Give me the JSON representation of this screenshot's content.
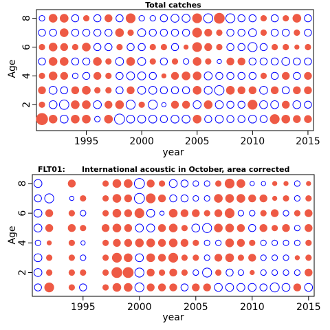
{
  "chart_data": [
    {
      "type": "bubble",
      "title": "Total catches",
      "title_prefix": "",
      "xlabel": "year",
      "ylabel": "Age",
      "xlim": [
        1990.5,
        2015.5
      ],
      "ylim": [
        0.2,
        8.6
      ],
      "xticks": [
        1995,
        2000,
        2005,
        2010,
        2015
      ],
      "yticks": [
        2,
        4,
        6,
        8
      ],
      "x": [
        1991,
        1992,
        1993,
        1994,
        1995,
        1996,
        1997,
        1998,
        1999,
        2000,
        2001,
        2002,
        2003,
        2004,
        2005,
        2006,
        2007,
        2008,
        2009,
        2010,
        2011,
        2012,
        2013,
        2014,
        2015
      ],
      "ages": [
        1,
        2,
        3,
        4,
        5,
        6,
        7,
        8
      ],
      "legend": "positive residuals filled (#EE5A45), negative residuals open circles (#0000FF)",
      "residuals": [
        [
          2.0,
          1.0,
          -1.0,
          1.0,
          1.0,
          -0.5,
          1.0,
          -1.6,
          -1.0,
          -1.0,
          -1.0,
          -0.8,
          -1.0,
          -1.0,
          1.0,
          -0.8,
          -1.0,
          -0.8,
          -0.8,
          -1.0,
          -0.8,
          1.3,
          1.0,
          0.8,
          0.8
        ],
        [
          0.5,
          -1.0,
          -1.4,
          1.0,
          1.0,
          -1.0,
          0.8,
          1.0,
          -1.3,
          0.5,
          -1.3,
          -0.3,
          0.8,
          0.8,
          -1.0,
          1.0,
          -1.0,
          -0.8,
          -0.8,
          1.3,
          -1.0,
          -1.0,
          0.8,
          -1.0,
          -0.8
        ],
        [
          0.8,
          -1.0,
          -0.8,
          0.8,
          1.0,
          0.5,
          0.5,
          -0.8,
          0.8,
          -1.0,
          -1.0,
          -0.8,
          -0.8,
          -0.8,
          1.0,
          -1.0,
          -1.4,
          1.0,
          0.8,
          0.8,
          -1.0,
          0.8,
          -0.8,
          0.8,
          0.8
        ],
        [
          0.5,
          1.0,
          0.8,
          -0.5,
          -0.8,
          0.8,
          0.5,
          -0.8,
          -1.0,
          -1.0,
          -0.8,
          0.3,
          0.8,
          1.0,
          1.0,
          -1.0,
          -0.8,
          -0.8,
          -0.8,
          -0.8,
          0.5,
          -0.8,
          0.8,
          -0.8,
          0.8
        ],
        [
          -0.8,
          1.0,
          1.0,
          -0.8,
          -0.8,
          1.0,
          0.5,
          -1.0,
          1.0,
          -1.0,
          0.5,
          -0.8,
          0.5,
          -0.5,
          1.0,
          0.5,
          -0.3,
          0.8,
          0.8,
          -0.8,
          -0.8,
          -0.8,
          -1.0,
          -0.8,
          -0.8
        ],
        [
          0.5,
          1.0,
          0.8,
          0.5,
          1.0,
          -0.8,
          -0.8,
          0.5,
          -0.8,
          -0.8,
          0.5,
          0.5,
          -0.8,
          0.3,
          1.3,
          0.8,
          0.5,
          -0.8,
          -0.8,
          -1.3,
          -0.8,
          0.5,
          0.5,
          0.3,
          0.5
        ],
        [
          -0.8,
          -0.8,
          1.0,
          -0.8,
          -0.8,
          -0.8,
          -0.8,
          1.0,
          0.5,
          -1.0,
          -0.8,
          -0.8,
          -0.8,
          -0.8,
          1.3,
          0.8,
          0.5,
          -0.8,
          -0.8,
          -1.0,
          0.5,
          -0.8,
          -0.8,
          0.5,
          -0.8
        ],
        [
          -0.5,
          1.0,
          1.0,
          -0.8,
          0.5,
          -0.8,
          0.8,
          -0.8,
          1.3,
          -0.5,
          -0.5,
          -0.8,
          -1.0,
          -1.0,
          1.3,
          -1.3,
          1.6,
          -1.3,
          -0.8,
          -0.8,
          0.5,
          -0.8,
          0.5,
          1.0,
          -0.8
        ]
      ]
    },
    {
      "type": "bubble",
      "title": "International acoustic in October, area corrected",
      "title_prefix": "FLT01:",
      "xlabel": "year",
      "ylabel": "Age",
      "xlim": [
        1990.5,
        2015.5
      ],
      "ylim": [
        0.4,
        8.6
      ],
      "xticks": [
        1995,
        2000,
        2005,
        2010,
        2015
      ],
      "yticks": [
        2,
        4,
        6,
        8
      ],
      "x": [
        1991,
        1992,
        1993,
        1994,
        1995,
        1996,
        1997,
        1998,
        1999,
        2000,
        2001,
        2002,
        2003,
        2004,
        2005,
        2006,
        2007,
        2008,
        2009,
        2010,
        2011,
        2012,
        2013,
        2014,
        2015
      ],
      "ages": [
        1,
        2,
        3,
        4,
        5,
        6,
        7,
        8
      ],
      "legend": "positive residuals filled (#EE5A45), negative residuals open circles (#0000FF)",
      "residuals": [
        [
          -0.8,
          1.3,
          null,
          0.5,
          -0.8,
          null,
          0.5,
          1.0,
          1.0,
          -1.3,
          0.8,
          0.8,
          0.8,
          -0.8,
          0.8,
          0.8,
          -1.0,
          -1.0,
          -1.0,
          -1.0,
          -0.8,
          -1.3,
          -1.0,
          0.8,
          -1.0
        ],
        [
          -1.0,
          0.5,
          null,
          0.5,
          0.5,
          null,
          0.5,
          1.6,
          1.6,
          -1.3,
          0.8,
          0.5,
          0.8,
          0.5,
          -0.5,
          -1.3,
          0.5,
          -0.8,
          -0.5,
          0.3,
          -0.5,
          -0.5,
          -0.5,
          -0.5,
          0.8
        ],
        [
          -1.0,
          0.5,
          null,
          0.5,
          -0.5,
          null,
          0.5,
          1.3,
          1.0,
          -1.0,
          1.0,
          0.8,
          1.3,
          0.5,
          0.5,
          -0.5,
          0.8,
          1.0,
          0.5,
          0.8,
          -0.5,
          -0.5,
          -0.5,
          0.3,
          0.5
        ],
        [
          -0.5,
          0.3,
          null,
          0.5,
          -0.3,
          null,
          0.5,
          0.8,
          0.8,
          1.0,
          1.0,
          0.8,
          1.0,
          0.8,
          0.5,
          -0.5,
          -0.5,
          1.0,
          0.8,
          0.5,
          -0.5,
          -0.5,
          -0.5,
          -0.5,
          0.5
        ],
        [
          -1.0,
          0.8,
          null,
          0.8,
          0.5,
          null,
          0.8,
          1.0,
          0.8,
          -1.0,
          -1.0,
          0.8,
          1.0,
          0.5,
          -1.0,
          -1.3,
          1.0,
          1.0,
          0.8,
          -0.8,
          0.8,
          0.5,
          0.8,
          -0.5,
          0.8
        ],
        [
          -1.0,
          0.8,
          null,
          0.5,
          -0.5,
          null,
          0.5,
          1.0,
          0.8,
          1.3,
          -1.0,
          -0.3,
          1.0,
          0.8,
          0.8,
          0.5,
          0.8,
          1.3,
          -0.5,
          -0.5,
          0.5,
          0.8,
          -0.5,
          0.5,
          0.8
        ],
        [
          -0.8,
          -1.3,
          null,
          -0.3,
          0.5,
          null,
          0.5,
          1.0,
          0.8,
          -1.6,
          1.3,
          0.8,
          -0.8,
          -0.8,
          -0.5,
          -0.5,
          1.0,
          1.0,
          1.0,
          0.8,
          0.8,
          0.3,
          0.5,
          -0.5,
          0.5
        ],
        [
          -1.0,
          null,
          null,
          0.8,
          null,
          null,
          0.5,
          1.0,
          1.0,
          -1.6,
          0.8,
          0.5,
          -1.0,
          -0.8,
          -0.5,
          -0.5,
          0.5,
          1.3,
          1.0,
          -0.3,
          -0.3,
          0.3,
          0.3,
          -0.5,
          0.3
        ]
      ]
    }
  ]
}
